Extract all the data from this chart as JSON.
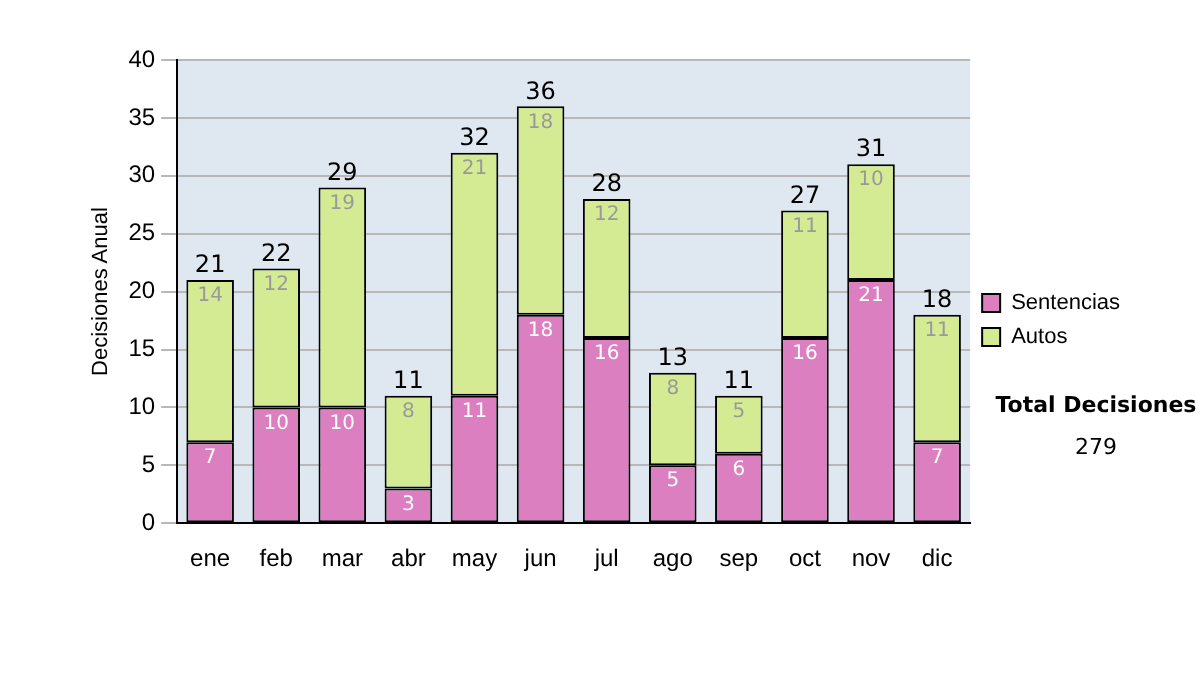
{
  "chart_data": {
    "type": "bar",
    "stacked": true,
    "ylabel": "Decisiones Anual",
    "categories": [
      "ene",
      "feb",
      "mar",
      "abr",
      "may",
      "jun",
      "jul",
      "ago",
      "sep",
      "oct",
      "nov",
      "dic"
    ],
    "series": [
      {
        "name": "Sentencias",
        "color": "#dc7fc0",
        "values": [
          7,
          10,
          10,
          3,
          11,
          18,
          16,
          5,
          6,
          16,
          21,
          7
        ]
      },
      {
        "name": "Autos",
        "color": "#d4eb94",
        "values": [
          14,
          12,
          19,
          8,
          21,
          18,
          12,
          8,
          5,
          11,
          10,
          11
        ]
      }
    ],
    "ylim": [
      0,
      40
    ],
    "yticks": [
      0,
      5,
      10,
      15,
      20,
      25,
      30,
      35,
      40
    ],
    "grid": "y",
    "legend": "right",
    "data_labels": true,
    "totals": [
      "21",
      "22",
      "29",
      "11",
      "32",
      "36",
      "28",
      "13",
      "11",
      "27",
      "31",
      "18"
    ],
    "annotations": [
      "Total Decisiones",
      "279"
    ]
  }
}
